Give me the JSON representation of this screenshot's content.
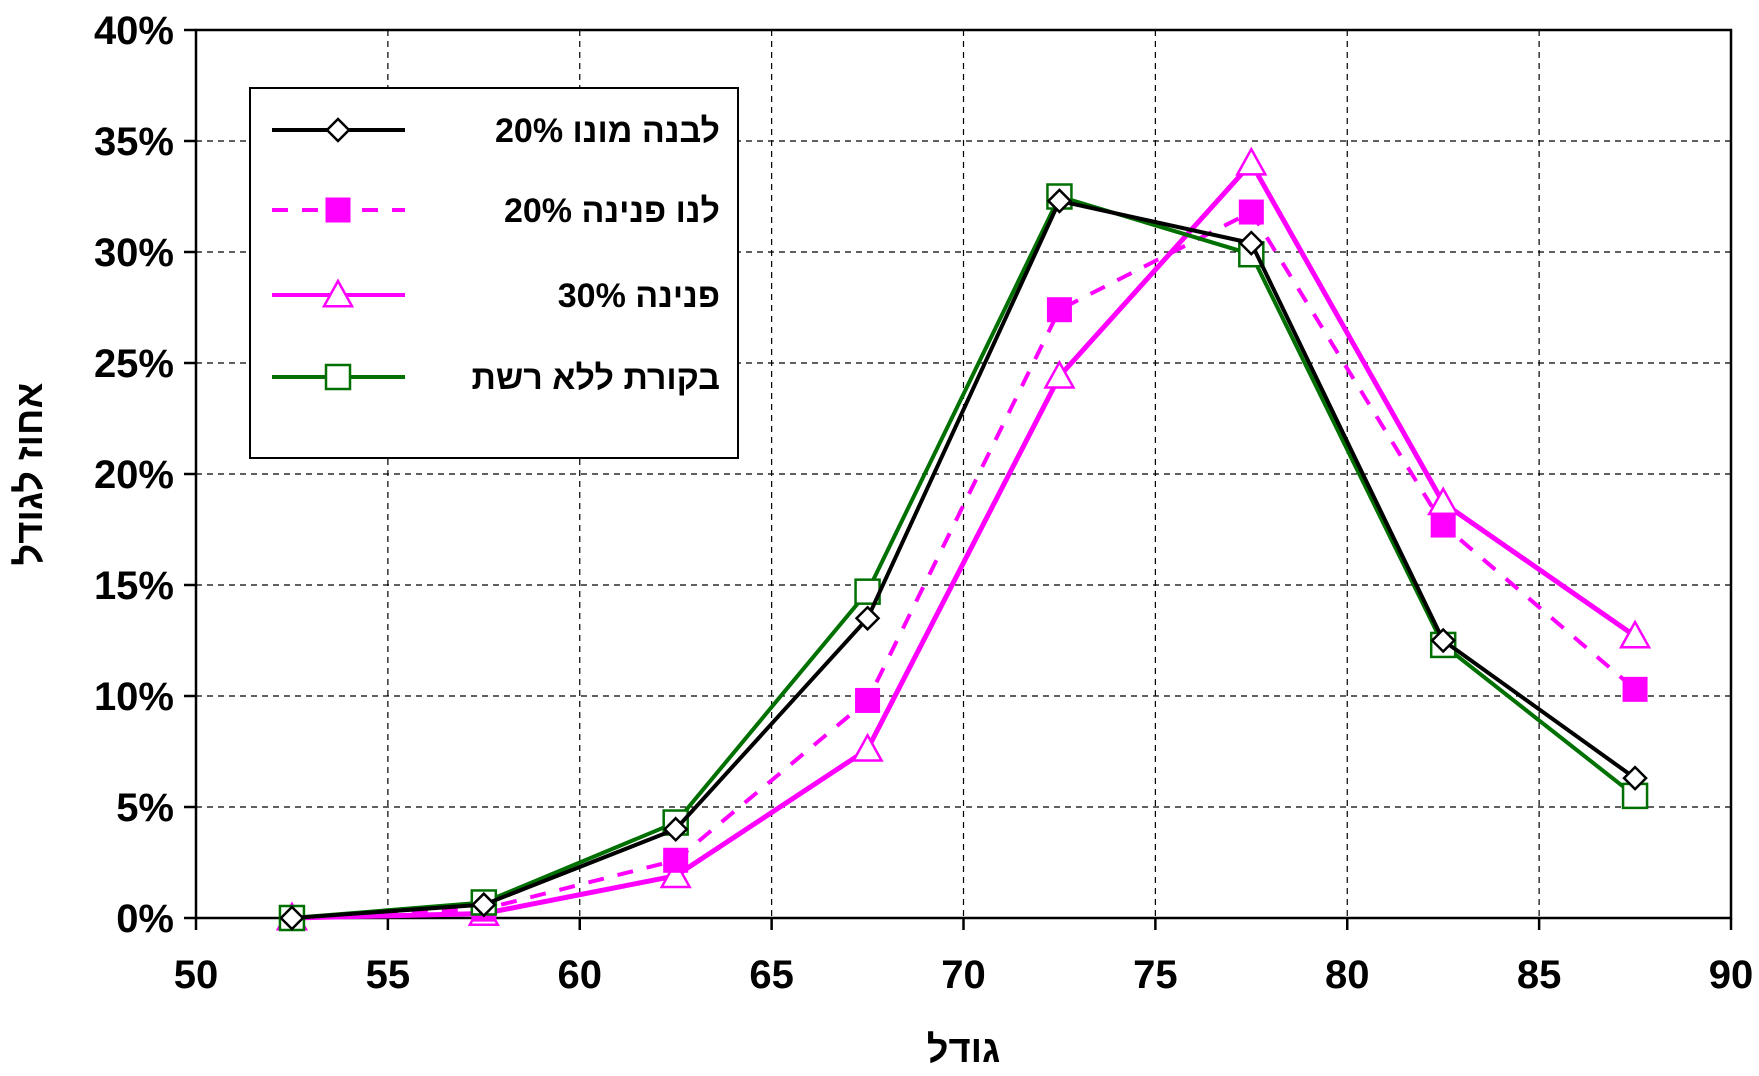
{
  "chart_data": {
    "type": "line",
    "title": "",
    "xlabel": "גודל",
    "ylabel": "אחוז לגודל",
    "xlim": [
      50,
      90
    ],
    "ylim": [
      0,
      40
    ],
    "x_ticks": [
      50,
      55,
      60,
      65,
      70,
      75,
      80,
      85,
      90
    ],
    "y_ticks": [
      0,
      5,
      10,
      15,
      20,
      25,
      30,
      35,
      40
    ],
    "x_tick_labels": [
      "50",
      "55",
      "60",
      "65",
      "70",
      "75",
      "80",
      "85",
      "90"
    ],
    "y_tick_labels": [
      "0%",
      "5%",
      "10%",
      "15%",
      "20%",
      "25%",
      "30%",
      "35%",
      "40%"
    ],
    "grid": true,
    "legend_position": "top-left",
    "x": [
      52.5,
      57.5,
      62.5,
      67.5,
      72.5,
      77.5,
      82.5,
      87.5
    ],
    "series": [
      {
        "name": "לבנה מונו 20%",
        "color": "#000000",
        "line_style": "solid",
        "marker": "diamond-open",
        "values": [
          0,
          0.6,
          4.0,
          13.5,
          32.3,
          30.4,
          12.5,
          6.3
        ]
      },
      {
        "name": "לנו פנינה 20%",
        "color": "#ff00ff",
        "line_style": "dashed",
        "marker": "square-filled",
        "values": [
          0,
          0.4,
          2.6,
          9.8,
          27.4,
          31.8,
          17.7,
          10.3
        ]
      },
      {
        "name": "פנינה 30%",
        "color": "#ff00ff",
        "line_style": "solid",
        "marker": "triangle-open",
        "values": [
          0,
          0.2,
          1.9,
          7.6,
          24.4,
          34.0,
          18.7,
          12.7
        ]
      },
      {
        "name": "בקורת ללא רשת",
        "color": "#007000",
        "line_style": "solid",
        "marker": "square-open",
        "values": [
          0,
          0.7,
          4.3,
          14.7,
          32.5,
          29.9,
          12.3,
          5.5
        ]
      }
    ]
  }
}
